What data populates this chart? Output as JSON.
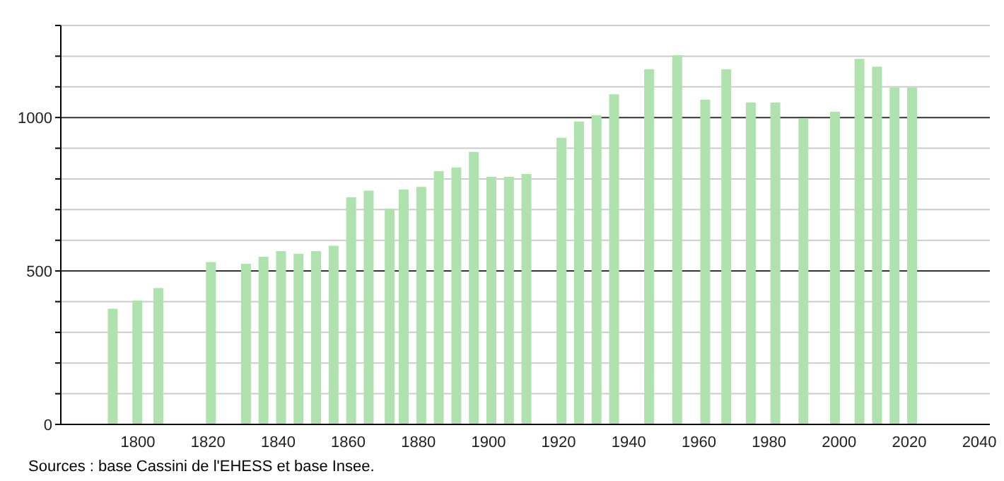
{
  "chart_data": {
    "type": "bar",
    "annotations": [
      "Sources : base Cassini de l'EHESS et base Insee."
    ],
    "x": [
      1793,
      1800,
      1806,
      1821,
      1831,
      1836,
      1841,
      1846,
      1851,
      1856,
      1861,
      1866,
      1872,
      1876,
      1881,
      1886,
      1891,
      1896,
      1901,
      1906,
      1911,
      1921,
      1926,
      1931,
      1936,
      1946,
      1954,
      1962,
      1968,
      1975,
      1982,
      1990,
      1999,
      2006,
      2011,
      2016,
      2021
    ],
    "values": [
      377,
      404,
      444,
      529,
      523,
      546,
      565,
      556,
      565,
      582,
      740,
      762,
      703,
      765,
      774,
      825,
      837,
      888,
      807,
      807,
      816,
      934,
      987,
      1008,
      1076,
      1157,
      1203,
      1058,
      1157,
      1049,
      1049,
      997,
      1019,
      1191,
      1166,
      1097,
      1097
    ],
    "color": "#b0e2b0",
    "xlim": [
      1778,
      2043
    ],
    "xticks": [
      1800,
      1820,
      1840,
      1860,
      1880,
      1900,
      1920,
      1940,
      1960,
      1980,
      2000,
      2020,
      2040
    ],
    "ylim": [
      0,
      1300
    ],
    "yticks": [
      0,
      {
        "value": 100,
        "label": null
      },
      {
        "value": 200,
        "label": null
      },
      {
        "value": 300,
        "label": null
      },
      {
        "value": 400,
        "label": null
      },
      500,
      {
        "value": 600,
        "label": null
      },
      {
        "value": 700,
        "label": null
      },
      {
        "value": 800,
        "label": null
      },
      {
        "value": 900,
        "label": null
      },
      1000,
      {
        "value": 1100,
        "label": null
      },
      {
        "value": 1200,
        "label": null
      },
      {
        "value": 1300,
        "label": null
      }
    ],
    "grid": "y"
  }
}
